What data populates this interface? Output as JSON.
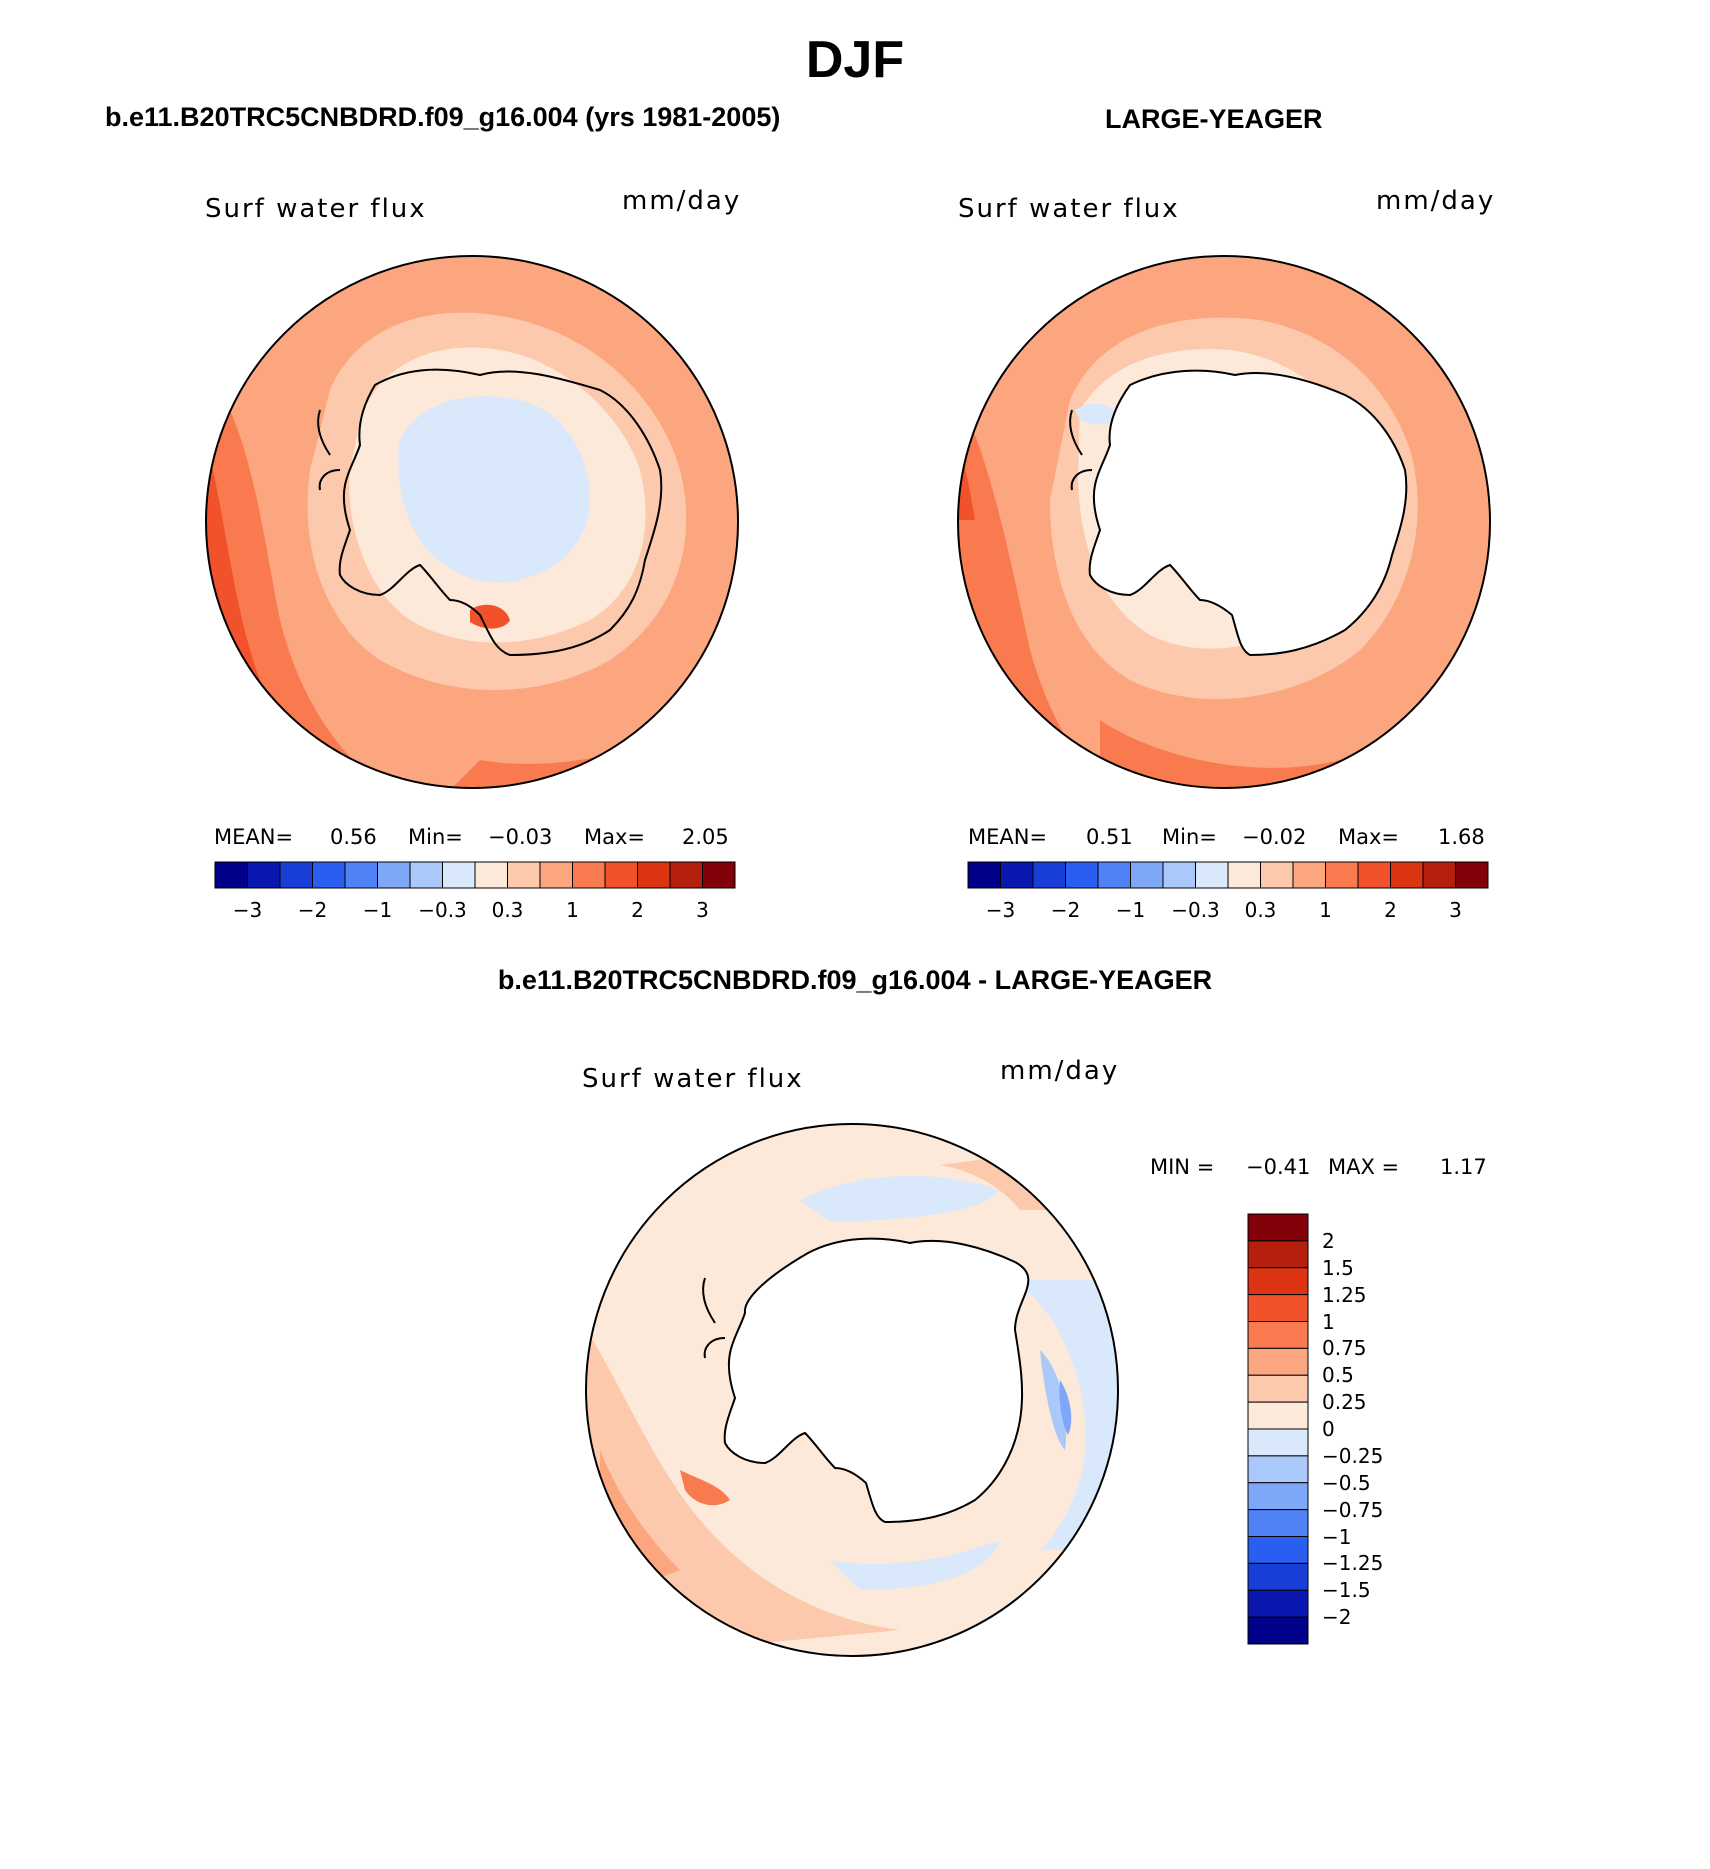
{
  "page_title": "DJF",
  "panels": {
    "model": {
      "title": "b.e11.B20TRC5CNBDRD.f09_g16.004 (yrs 1981-2005)",
      "variable": "Surf water flux",
      "units": "mm/day",
      "stats": {
        "mean_label": "MEAN=",
        "mean": "0.56",
        "min_label": "Min=",
        "min": "−0.03",
        "max_label": "Max=",
        "max": "2.05"
      }
    },
    "obs": {
      "title": "LARGE-YEAGER",
      "variable": "Surf water flux",
      "units": "mm/day",
      "stats": {
        "mean_label": "MEAN=",
        "mean": "0.51",
        "min_label": "Min=",
        "min": "−0.02",
        "max_label": "Max=",
        "max": "1.68"
      }
    },
    "diff": {
      "title": "b.e11.B20TRC5CNBDRD.f09_g16.004 - LARGE-YEAGER",
      "variable": "Surf water flux",
      "units": "mm/day",
      "minmax": {
        "min_label": "MIN =",
        "min": "−0.41",
        "max_label": "MAX =",
        "max": "1.17"
      }
    }
  },
  "colorbar_main": {
    "colors": [
      "#00008a",
      "#0a18b0",
      "#1a3fd8",
      "#2a5ef0",
      "#4f82f5",
      "#7ea7f7",
      "#aac8fa",
      "#d9e8fb",
      "#fde9d9",
      "#fdc9ac",
      "#fba67f",
      "#f97a4f",
      "#f2522b",
      "#dd3414",
      "#b5200e",
      "#820008"
    ],
    "tick_labels": [
      "−3",
      "−2",
      "−1",
      "−0.3",
      "0.3",
      "1",
      "2",
      "3"
    ]
  },
  "colorbar_diff": {
    "colors": [
      "#820008",
      "#b5200e",
      "#dd3414",
      "#f2522b",
      "#f97a4f",
      "#fba67f",
      "#fdc9ac",
      "#fde9d9",
      "#d9e8fb",
      "#aac8fa",
      "#7ea7f7",
      "#4f82f5",
      "#2a5ef0",
      "#1a3fd8",
      "#0a18b0",
      "#00008a"
    ],
    "tick_labels": [
      "2",
      "1.5",
      "1.25",
      "1",
      "0.75",
      "0.5",
      "0.25",
      "0",
      "−0.25",
      "−0.5",
      "−0.75",
      "−1",
      "−1.25",
      "−1.5",
      "−2"
    ]
  },
  "palette": {
    "light_blue": "#d9e8fb",
    "pale": "#fde9d9",
    "light_salmon": "#fdc9ac",
    "salmon": "#fba67f",
    "orange": "#f97a4f",
    "red_orange": "#f2522b",
    "blue": "#aac8fa",
    "mid_blue": "#7ea7f7"
  }
}
